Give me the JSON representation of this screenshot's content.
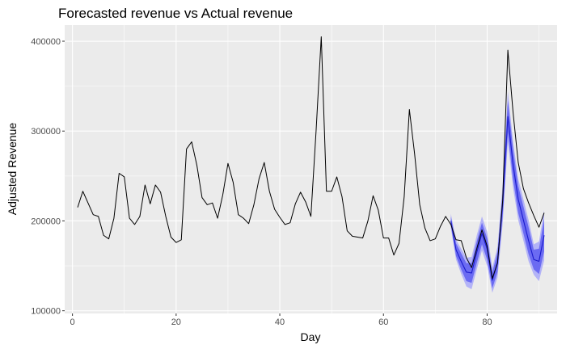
{
  "chart_data": {
    "type": "line",
    "title": "Forecasted revenue vs Actual revenue",
    "xlabel": "Day",
    "ylabel": "Adjusted Revenue",
    "xlim": [
      -1.5,
      93.5
    ],
    "ylim": [
      97000,
      418000
    ],
    "x_ticks": [
      0,
      20,
      40,
      60,
      80
    ],
    "x_tick_labels": [
      "0",
      "20",
      "40",
      "60",
      "80"
    ],
    "x_minor_ticks": [
      10,
      30,
      50,
      70,
      90
    ],
    "y_ticks": [
      100000,
      200000,
      300000,
      400000
    ],
    "y_tick_labels": [
      "100000",
      "200000",
      "300000",
      "400000"
    ],
    "y_minor_ticks": [
      150000,
      250000,
      350000
    ],
    "grid": true,
    "colors": {
      "panel": "#ebebeb",
      "grid": "#ffffff",
      "actual": "#000000",
      "forecast": "#1a1acc",
      "band_80": "#6b6bf2",
      "band_95": "#b3b3f7"
    },
    "actual": {
      "x": [
        1,
        2,
        3,
        4,
        5,
        6,
        7,
        8,
        9,
        10,
        11,
        12,
        13,
        14,
        15,
        16,
        17,
        18,
        19,
        20,
        21,
        22,
        23,
        24,
        25,
        26,
        27,
        28,
        29,
        30,
        31,
        32,
        33,
        34,
        35,
        36,
        37,
        38,
        39,
        40,
        41,
        42,
        43,
        44,
        45,
        46,
        47,
        48,
        49,
        50,
        51,
        52,
        53,
        54,
        55,
        56,
        57,
        58,
        59,
        60,
        61,
        62,
        63,
        64,
        65,
        66,
        67,
        68,
        69,
        70,
        71,
        72,
        73,
        74,
        75,
        76,
        77,
        78,
        79,
        80,
        81,
        82,
        83,
        84,
        85,
        86,
        87,
        88,
        89,
        90,
        91
      ],
      "y": [
        215000,
        233000,
        220000,
        207000,
        205000,
        184000,
        180000,
        203000,
        253000,
        249000,
        203000,
        196000,
        205000,
        240000,
        219000,
        240000,
        232000,
        205000,
        182000,
        176000,
        179000,
        280000,
        288000,
        262000,
        226000,
        218000,
        220000,
        203000,
        229000,
        264000,
        243000,
        207000,
        203000,
        197000,
        218000,
        247000,
        265000,
        233000,
        213000,
        204000,
        196000,
        198000,
        219000,
        232000,
        221000,
        205000,
        300000,
        405000,
        233000,
        233000,
        249000,
        227000,
        189000,
        183000,
        182000,
        181000,
        200000,
        228000,
        212000,
        181000,
        181000,
        162000,
        175000,
        227000,
        324000,
        275000,
        218000,
        192000,
        178000,
        180000,
        194000,
        205000,
        196000,
        179000,
        178000,
        159000,
        148000,
        169000,
        190000,
        172000,
        136000,
        153000,
        223000,
        390000,
        321000,
        265000,
        236000,
        220000,
        206000,
        193000,
        209000
      ]
    },
    "forecast": {
      "x": [
        73,
        74,
        75,
        76,
        77,
        78,
        79,
        80,
        81,
        82,
        83,
        84,
        85,
        86,
        87,
        88,
        89,
        90,
        91
      ],
      "y": [
        200000,
        168000,
        155000,
        143000,
        142000,
        165000,
        186000,
        169000,
        134000,
        154000,
        219000,
        316000,
        263000,
        224000,
        201000,
        178000,
        157000,
        155000,
        184000
      ],
      "lower_80": [
        195000,
        161000,
        146000,
        133000,
        131000,
        153000,
        174000,
        157000,
        125000,
        143000,
        205000,
        298000,
        246000,
        209000,
        186000,
        163000,
        146000,
        141000,
        166000
      ],
      "upper_80": [
        205000,
        175000,
        164000,
        153000,
        153000,
        177000,
        198000,
        181000,
        143000,
        165000,
        233000,
        334000,
        280000,
        239000,
        216000,
        193000,
        168000,
        169000,
        202000
      ],
      "lower_95": [
        192000,
        157000,
        141000,
        127000,
        124000,
        146000,
        167000,
        150000,
        120000,
        137000,
        197000,
        288000,
        237000,
        201000,
        178000,
        155000,
        140000,
        133000,
        156000
      ],
      "upper_95": [
        208000,
        179000,
        169000,
        159000,
        160000,
        184000,
        205000,
        188000,
        148000,
        171000,
        241000,
        344000,
        289000,
        247000,
        224000,
        201000,
        174000,
        177000,
        212000
      ]
    }
  }
}
